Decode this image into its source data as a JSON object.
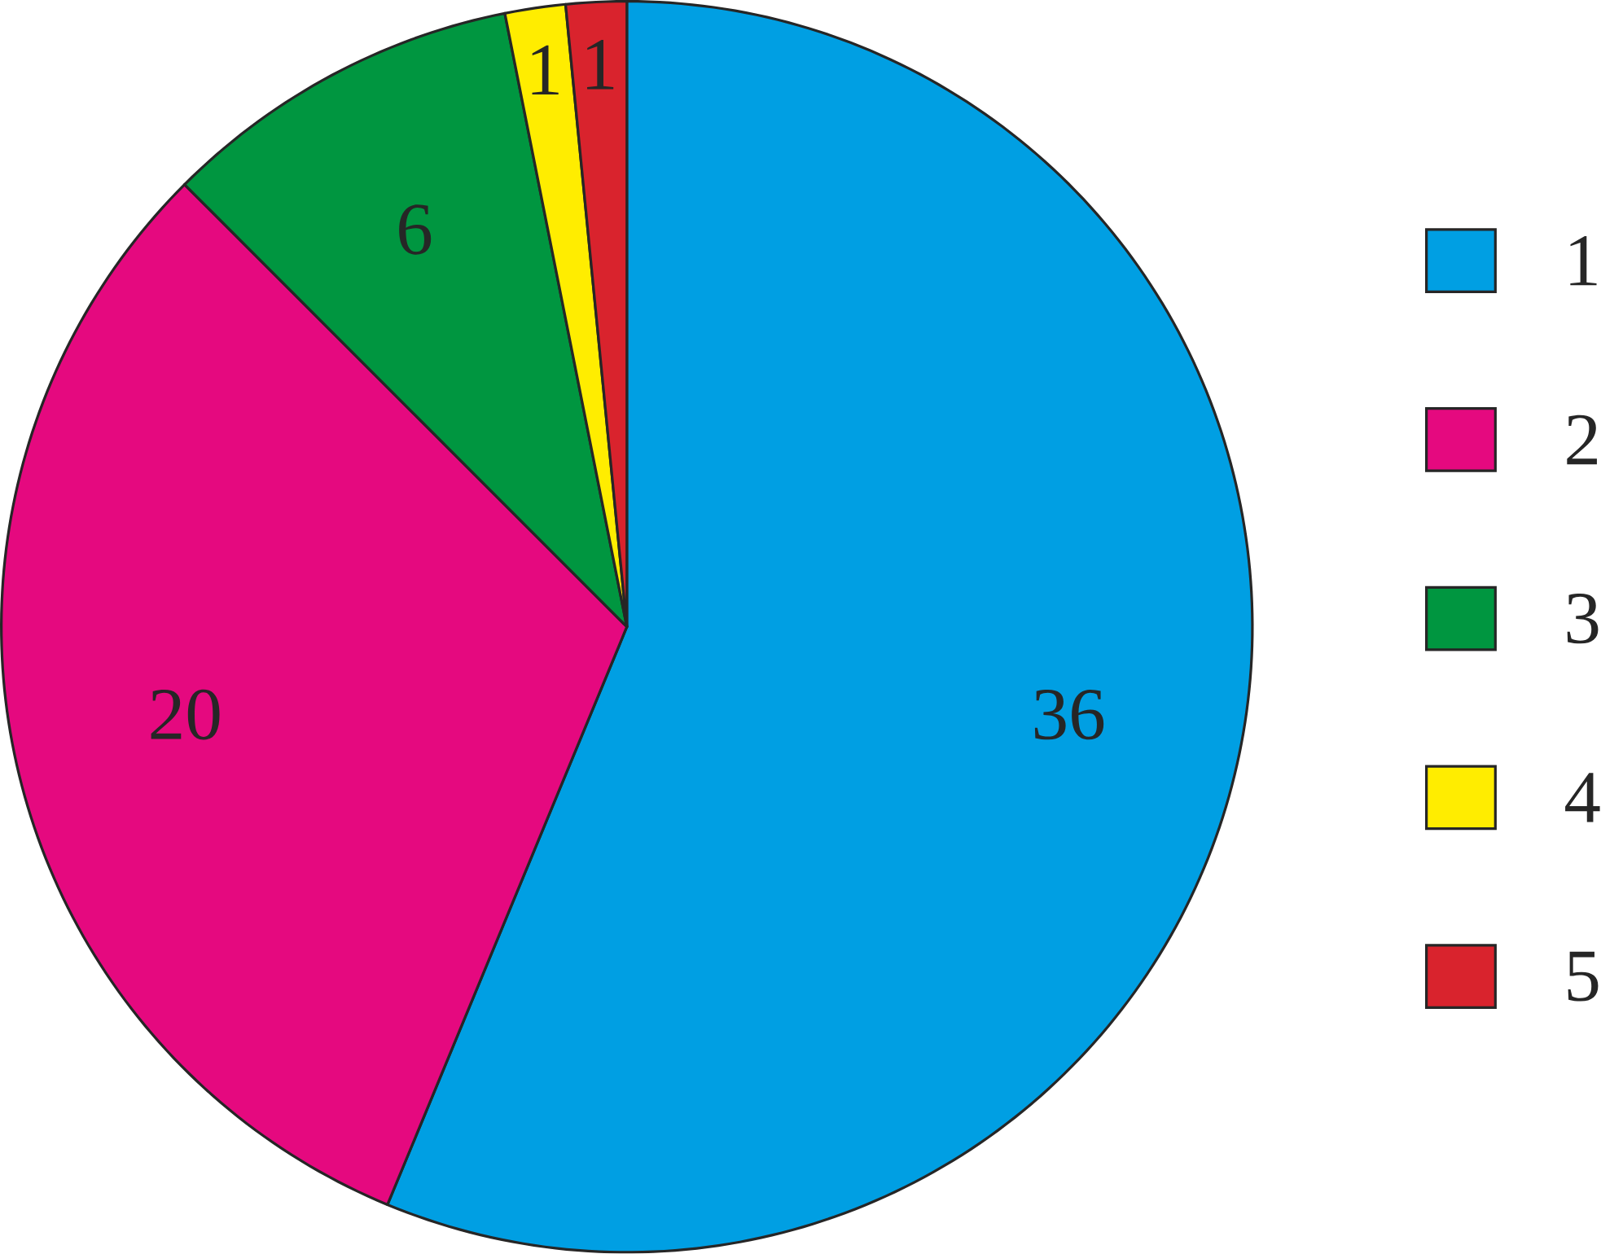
{
  "chart_data": {
    "type": "pie",
    "categories": [
      "1",
      "2",
      "3",
      "4",
      "5"
    ],
    "values": [
      36,
      20,
      6,
      1,
      1
    ],
    "colors": [
      "#009fe3",
      "#e5097f",
      "#009640",
      "#ffed00",
      "#d9232d"
    ],
    "data_labels": true,
    "legend": "right"
  }
}
